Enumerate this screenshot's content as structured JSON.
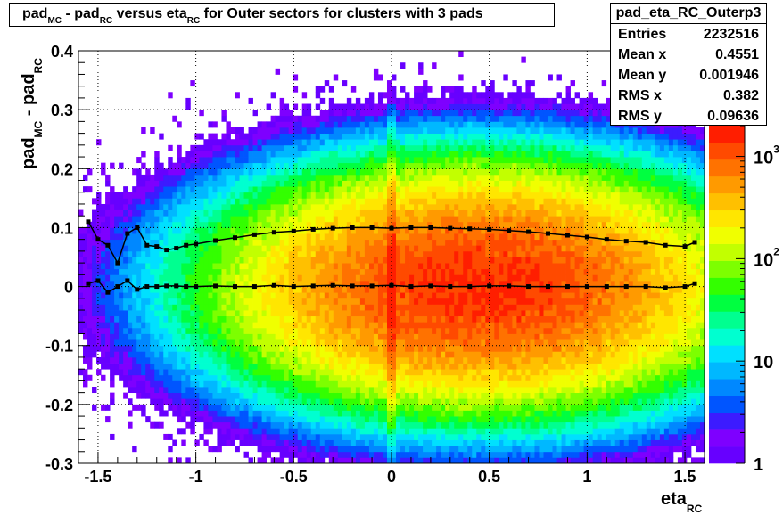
{
  "chart_data": {
    "type": "heatmap",
    "histogram_name": "pad_eta_RC_Outerp3",
    "title": {
      "parts": [
        "pad",
        "MC",
        " - pad",
        "RC",
        " versus eta",
        "RC",
        " for Outer sectors for clusters with 3 pads"
      ]
    },
    "xlabel": {
      "main": "eta",
      "sub": "RC"
    },
    "ylabel": {
      "parts": [
        "pad",
        "MC",
        " - pad",
        "RC"
      ]
    },
    "xlim": [
      -1.6,
      1.6
    ],
    "ylim": [
      -0.3,
      0.4
    ],
    "x_ticks": [
      -1.5,
      -1,
      -0.5,
      0,
      0.5,
      1,
      1.5
    ],
    "x_tick_labels": [
      "-1.5",
      "-1",
      "-0.5",
      "0",
      "0.5",
      "1",
      "1.5"
    ],
    "y_ticks": [
      -0.3,
      -0.2,
      -0.1,
      0,
      0.1,
      0.2,
      0.3,
      0.4
    ],
    "y_tick_labels": [
      "-0.3",
      "-0.2",
      "-0.1",
      "0",
      "0.1",
      "0.2",
      "0.3",
      "0.4"
    ],
    "grid": true,
    "z_scale": "log",
    "z_range": [
      1,
      2000
    ],
    "palette_labels": [
      {
        "value": 1,
        "label": "1"
      },
      {
        "value": 10,
        "label": "10"
      },
      {
        "value": 100,
        "label": "10",
        "exponent": "2"
      },
      {
        "value": 1000,
        "label": "10",
        "exponent": "3"
      }
    ],
    "stats": [
      {
        "label": "Entries",
        "value": "2232516"
      },
      {
        "label": "Mean x",
        "value": "0.4551"
      },
      {
        "label": "Mean y",
        "value": "0.001946"
      },
      {
        "label": "RMS x",
        "value": "0.382"
      },
      {
        "label": "RMS y",
        "value": "0.09636"
      }
    ],
    "density": {
      "center_x": 0.45,
      "center_y": 0.0,
      "sigma_x": 0.55,
      "sigma_y": 0.085,
      "peak_count": 1500,
      "ridge_x": 0.0,
      "ridge_boost": 2.0
    },
    "series": [
      {
        "kind": "mean",
        "x": [
          -1.55,
          -1.5,
          -1.45,
          -1.4,
          -1.35,
          -1.3,
          -1.25,
          -1.2,
          -1.15,
          -1.1,
          -1.05,
          -1.0,
          -0.9,
          -0.8,
          -0.7,
          -0.6,
          -0.5,
          -0.4,
          -0.3,
          -0.2,
          -0.1,
          0.0,
          0.1,
          0.2,
          0.3,
          0.4,
          0.5,
          0.6,
          0.7,
          0.8,
          0.9,
          1.0,
          1.1,
          1.2,
          1.3,
          1.4,
          1.5,
          1.55
        ],
        "y": [
          0.005,
          0.01,
          -0.01,
          0.0,
          0.01,
          -0.005,
          0.0,
          0.0,
          0.001,
          0.001,
          0.0,
          0.0,
          0.001,
          0.0,
          0.0,
          0.002,
          0.0,
          0.001,
          0.002,
          0.001,
          0.001,
          0.002,
          0.0,
          0.001,
          0.0,
          0.0,
          0.001,
          0.001,
          0.0,
          0.0,
          0.0,
          0.0,
          0.0,
          0.0,
          0.0,
          -0.002,
          0.0,
          0.005
        ]
      },
      {
        "kind": "rms",
        "x": [
          -1.55,
          -1.5,
          -1.45,
          -1.4,
          -1.35,
          -1.3,
          -1.25,
          -1.2,
          -1.15,
          -1.1,
          -1.05,
          -1.0,
          -0.9,
          -0.8,
          -0.7,
          -0.6,
          -0.5,
          -0.4,
          -0.3,
          -0.2,
          -0.1,
          0.0,
          0.1,
          0.2,
          0.3,
          0.4,
          0.5,
          0.6,
          0.7,
          0.8,
          0.9,
          1.0,
          1.1,
          1.2,
          1.3,
          1.4,
          1.5,
          1.55
        ],
        "y": [
          0.11,
          0.08,
          0.07,
          0.04,
          0.09,
          0.1,
          0.07,
          0.068,
          0.062,
          0.065,
          0.07,
          0.072,
          0.078,
          0.083,
          0.088,
          0.092,
          0.094,
          0.097,
          0.099,
          0.1,
          0.1,
          0.099,
          0.1,
          0.1,
          0.099,
          0.098,
          0.097,
          0.095,
          0.093,
          0.09,
          0.087,
          0.084,
          0.08,
          0.077,
          0.075,
          0.07,
          0.068,
          0.075
        ]
      }
    ]
  }
}
